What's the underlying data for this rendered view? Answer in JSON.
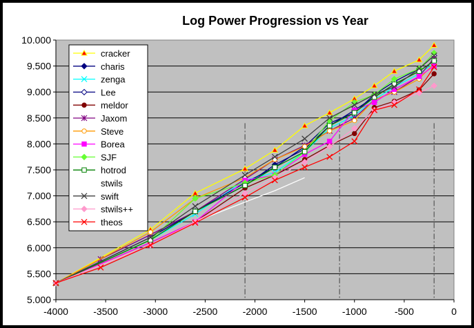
{
  "chart_data": {
    "type": "line",
    "title": "Log Power Progression vs Year",
    "xlabel": "",
    "ylabel": "",
    "xlim": [
      -4000,
      0
    ],
    "ylim": [
      5.0,
      10.0
    ],
    "x_ticks": [
      "-4000",
      "-3500",
      "-3000",
      "-2500",
      "-2000",
      "-1500",
      "-1000",
      "-500",
      "0"
    ],
    "y_ticks": [
      "5.000",
      "5.500",
      "6.000",
      "6.500",
      "7.000",
      "7.500",
      "8.000",
      "8.500",
      "9.000",
      "9.500",
      "10.000"
    ],
    "grid": "horizontal",
    "plot_background": "#c0c0c0",
    "legend_position": "left, overlapping plot",
    "reference_lines_x": [
      -2100,
      -1150,
      -200
    ],
    "series": [
      {
        "name": "cracker",
        "color": "#ffff00",
        "marker": "triangle",
        "x": [
          -4000,
          -3050,
          -2600,
          -2100,
          -1800,
          -1500,
          -1250,
          -1000,
          -800,
          -600,
          -350,
          -200
        ],
        "y": [
          5.32,
          6.35,
          7.05,
          7.52,
          7.88,
          8.35,
          8.6,
          8.87,
          9.12,
          9.4,
          9.62,
          9.9
        ]
      },
      {
        "name": "charis",
        "color": "#000080",
        "marker": "diamond",
        "x": [
          -4000,
          -3050,
          -2600,
          -2100,
          -1800,
          -1500,
          -1250,
          -1000,
          -800,
          -600,
          -350,
          -200
        ],
        "y": [
          5.32,
          6.2,
          6.7,
          7.2,
          7.6,
          7.9,
          8.35,
          8.65,
          8.9,
          9.15,
          9.4,
          9.6
        ]
      },
      {
        "name": "zenga",
        "color": "#00ffff",
        "marker": "x",
        "x": [
          -4000,
          -3050,
          -2600,
          -2100,
          -1800,
          -1500,
          -1250,
          -1000,
          -800,
          -600,
          -350,
          -200
        ],
        "y": [
          5.32,
          6.15,
          6.65,
          7.3,
          7.45,
          7.85,
          8.3,
          8.55,
          8.85,
          9.1,
          9.35,
          9.55
        ]
      },
      {
        "name": "Lee",
        "color": "#000080",
        "marker": "diamond-open",
        "x": [
          -4000,
          -3050,
          -2600,
          -2100,
          -1800,
          -1500,
          -1250,
          -1000,
          -800,
          -600,
          -350,
          -200
        ],
        "y": [
          5.32,
          6.2,
          6.7,
          7.25,
          7.55,
          7.95,
          8.4,
          8.6,
          8.95,
          9.2,
          9.45,
          9.7
        ]
      },
      {
        "name": "meldor",
        "color": "#800000",
        "marker": "circle",
        "x": [
          -4000,
          -3050,
          -2600,
          -2100,
          -1800,
          -1500,
          -1250,
          -1000,
          -800,
          -600,
          -350,
          -200
        ],
        "y": [
          5.32,
          6.1,
          6.5,
          7.15,
          7.4,
          7.7,
          7.97,
          8.2,
          8.7,
          8.82,
          9.04,
          9.35
        ]
      },
      {
        "name": "Jaxom",
        "color": "#800080",
        "marker": "star",
        "x": [
          -4000,
          -3550,
          -3050,
          -2600,
          -2100,
          -1800,
          -1500,
          -1250,
          -1000,
          -800,
          -600,
          -350,
          -200
        ],
        "y": [
          5.32,
          5.78,
          6.25,
          6.7,
          7.32,
          7.7,
          7.97,
          8.25,
          8.5,
          8.85,
          9.0,
          9.3,
          9.65
        ]
      },
      {
        "name": "Steve",
        "color": "#ff9900",
        "marker": "circle-open",
        "x": [
          -4000,
          -3050,
          -2600,
          -2100,
          -1800,
          -1500,
          -1250,
          -1000,
          -800,
          -600,
          -350,
          -200
        ],
        "y": [
          5.32,
          6.3,
          6.95,
          7.35,
          7.7,
          7.95,
          8.25,
          8.45,
          8.85,
          9.0,
          9.25,
          9.55
        ]
      },
      {
        "name": "Borea",
        "color": "#ff00ff",
        "marker": "square",
        "x": [
          -4000,
          -3050,
          -2600,
          -2100,
          -1800,
          -1500,
          -1250,
          -1000,
          -800,
          -600,
          -350,
          -200
        ],
        "y": [
          5.32,
          6.1,
          6.5,
          7.3,
          7.4,
          7.8,
          8.05,
          8.65,
          8.8,
          9.05,
          9.3,
          9.5
        ]
      },
      {
        "name": "SJF",
        "color": "#66ff33",
        "marker": "diamond",
        "x": [
          -4000,
          -3050,
          -2600,
          -2100,
          -1800,
          -1500,
          -1250,
          -1000,
          -800,
          -600,
          -350,
          -200
        ],
        "y": [
          5.32,
          6.15,
          6.95,
          7.25,
          7.4,
          7.85,
          8.45,
          8.8,
          8.95,
          9.25,
          9.45,
          9.75
        ]
      },
      {
        "name": "hotrod",
        "color": "#008000",
        "marker": "square-open",
        "x": [
          -4000,
          -3050,
          -2600,
          -2100,
          -1800,
          -1500,
          -1250,
          -1000,
          -800,
          -600,
          -350,
          -200
        ],
        "y": [
          5.32,
          6.15,
          6.7,
          7.2,
          7.55,
          7.85,
          8.35,
          8.6,
          8.9,
          9.15,
          9.4,
          9.6
        ]
      },
      {
        "name": "stwils",
        "color": "#ffffff",
        "marker": "none",
        "x": [
          -4000,
          -3050,
          -2600,
          -2100,
          -1800,
          -1500
        ],
        "y": [
          5.32,
          6.05,
          6.5,
          6.88,
          7.1,
          7.35
        ]
      },
      {
        "name": "swift",
        "color": "#404040",
        "marker": "x",
        "x": [
          -4000,
          -3050,
          -2600,
          -2100,
          -1800,
          -1500,
          -1250,
          -1000,
          -800,
          -600,
          -350,
          -200
        ],
        "y": [
          5.32,
          6.2,
          6.8,
          7.4,
          7.75,
          8.1,
          8.5,
          8.75,
          8.95,
          9.1,
          9.45,
          9.7
        ]
      },
      {
        "name": "stwils++",
        "color": "#ff99cc",
        "marker": "diamond",
        "x": [
          -4000,
          -3050,
          -2600,
          -2100,
          -1800,
          -1500,
          -1250,
          -1000,
          -800,
          -600,
          -350,
          -200
        ],
        "y": [
          5.32,
          6.05,
          6.5,
          7.05,
          7.35,
          7.65,
          7.95,
          8.3,
          8.65,
          8.8,
          8.98,
          9.12
        ]
      },
      {
        "name": "theos",
        "color": "#ff0000",
        "marker": "x",
        "x": [
          -4000,
          -3550,
          -3050,
          -2600,
          -2100,
          -1800,
          -1500,
          -1250,
          -1000,
          -800,
          -600,
          -350,
          -200
        ],
        "y": [
          5.32,
          5.62,
          6.05,
          6.48,
          6.97,
          7.3,
          7.55,
          7.75,
          8.05,
          8.65,
          8.75,
          9.05,
          9.48
        ]
      }
    ]
  }
}
